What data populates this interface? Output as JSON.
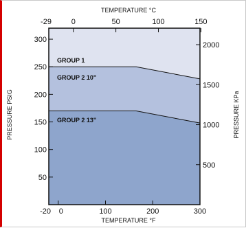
{
  "chart_data": {
    "type": "area",
    "x_axis_bottom": {
      "label": "TEMPERATURE °F",
      "range": [
        -20,
        300
      ],
      "ticks": [
        -20,
        0,
        100,
        200,
        300
      ],
      "tick_labels": [
        "-20",
        "0",
        "100",
        "200",
        "300"
      ]
    },
    "x_axis_top": {
      "label": "TEMPERATURE °C",
      "ticks": [
        -29,
        0,
        50,
        100,
        150
      ],
      "tick_labels": [
        "-29",
        "0",
        "50",
        "100",
        "150"
      ]
    },
    "y_axis_left": {
      "label": "PRESSURE PSIG",
      "range": [
        0,
        320
      ],
      "ticks": [
        50,
        100,
        150,
        200,
        250,
        300
      ],
      "tick_labels": [
        "50",
        "100",
        "150",
        "200",
        "250",
        "300"
      ]
    },
    "y_axis_right": {
      "label": "PRESSURE KPa",
      "ticks": [
        500,
        1000,
        1500,
        2000
      ],
      "tick_labels": [
        "500",
        "1000",
        "1500",
        "2000"
      ]
    },
    "series": [
      {
        "name": "GROUP 1",
        "x": [
          -20,
          300
        ],
        "y": [
          320,
          320
        ],
        "fill": "#dfe3f0"
      },
      {
        "name": "GROUP 2 10\"",
        "x": [
          -20,
          165,
          300
        ],
        "y": [
          250,
          250,
          228
        ],
        "fill": "#b4c1de"
      },
      {
        "name": "GROUP 2 13\"",
        "x": [
          -20,
          165,
          300
        ],
        "y": [
          170,
          170,
          148
        ],
        "fill": "#8ea5cc"
      }
    ],
    "grid": false,
    "colors": {
      "outer_border": "#d40000",
      "plot_border": "#111111"
    }
  }
}
